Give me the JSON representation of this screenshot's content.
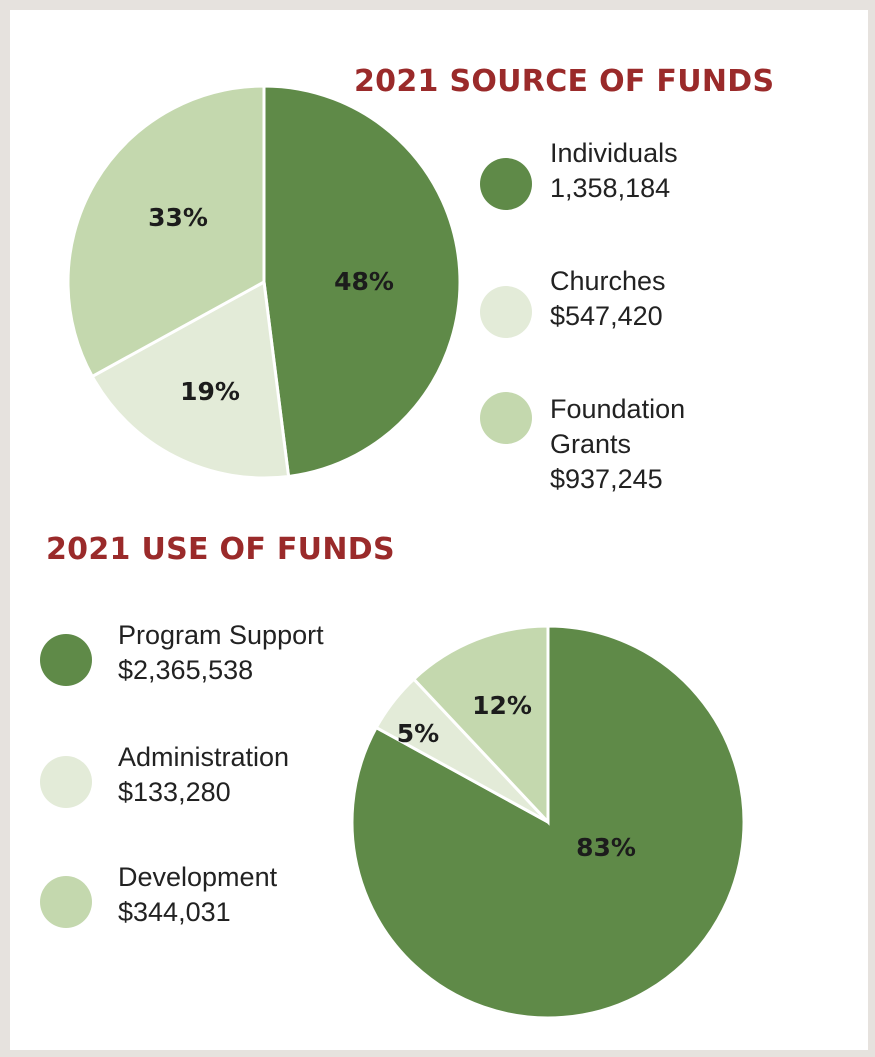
{
  "colors": {
    "dark": "#5f8a48",
    "light": "#e3ebd8",
    "mid": "#c4d8ae",
    "title": "#9a2a2a"
  },
  "chart_data": [
    {
      "type": "pie",
      "title": "2021 SOURCE OF FUNDS",
      "slices": [
        {
          "label": "Individuals",
          "value_text": "1,358,184",
          "value": 1358184,
          "percent": 48,
          "percent_label": "48%",
          "color": "#5f8a48"
        },
        {
          "label": "Churches",
          "value_text": "$547,420",
          "value": 547420,
          "percent": 19,
          "percent_label": "19%",
          "color": "#e3ebd8"
        },
        {
          "label": "Foundation Grants",
          "label_lines": [
            "Foundation",
            "Grants"
          ],
          "value_text": "$937,245",
          "value": 937245,
          "percent": 33,
          "percent_label": "33%",
          "color": "#c4d8ae"
        }
      ],
      "legend": "right"
    },
    {
      "type": "pie",
      "title": "2021 USE OF FUNDS",
      "slices": [
        {
          "label": "Program Support",
          "value_text": "$2,365,538",
          "value": 2365538,
          "percent": 83,
          "percent_label": "83%",
          "color": "#5f8a48"
        },
        {
          "label": "Administration",
          "value_text": "$133,280",
          "value": 133280,
          "percent": 5,
          "percent_label": "5%",
          "color": "#e3ebd8"
        },
        {
          "label": "Development",
          "value_text": "$344,031",
          "value": 344031,
          "percent": 12,
          "percent_label": "12%",
          "color": "#c4d8ae"
        }
      ],
      "legend": "left"
    }
  ]
}
